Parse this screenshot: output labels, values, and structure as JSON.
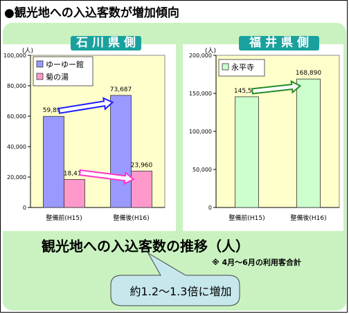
{
  "heading": "●観光地への入込客数が増加傾向",
  "colors": {
    "series_yuyu": "#9999ff",
    "series_kiku": "#ff99cc",
    "series_eihei": "#ccffcc",
    "pill": "#1aa19e",
    "panel": "#c9f2c0",
    "plot_bg": "#ffffcc"
  },
  "chart_data": [
    {
      "type": "bar",
      "title": "石川県側",
      "unit": "(人)",
      "categories": [
        "整備前(H15)",
        "整備後(H16)"
      ],
      "series": [
        {
          "name": "ゆーゆー館",
          "values": [
            59894,
            73687
          ],
          "labels": [
            "59,894",
            "73,687"
          ]
        },
        {
          "name": "菊の湯",
          "values": [
            18410,
            23960
          ],
          "labels": [
            "18,410",
            "23,960"
          ]
        }
      ],
      "ylim": [
        0,
        100000
      ],
      "yticks": [
        0,
        20000,
        40000,
        60000,
        80000,
        100000
      ],
      "ytick_labels": [
        "0",
        "20,000",
        "40,000",
        "60,000",
        "80,000",
        "100,000"
      ],
      "legend": "top-left",
      "grid": false
    },
    {
      "type": "bar",
      "title": "福井県側",
      "unit": "(人)",
      "categories": [
        "整備前(H15)",
        "整備後(H16)"
      ],
      "series": [
        {
          "name": "永平寺",
          "values": [
            145533,
            168890
          ],
          "labels": [
            "145,533",
            "168,890"
          ]
        }
      ],
      "ylim": [
        0,
        200000
      ],
      "yticks": [
        0,
        50000,
        100000,
        150000,
        200000
      ],
      "ytick_labels": [
        "0",
        "50,000",
        "100,000",
        "150,000",
        "200,000"
      ],
      "legend": "top-left",
      "grid": false
    }
  ],
  "main_title": "観光地への入込客数の推移（人）",
  "note": "※ 4月～6月の利用客合計",
  "callout": "約1.2～1.3倍に増加"
}
